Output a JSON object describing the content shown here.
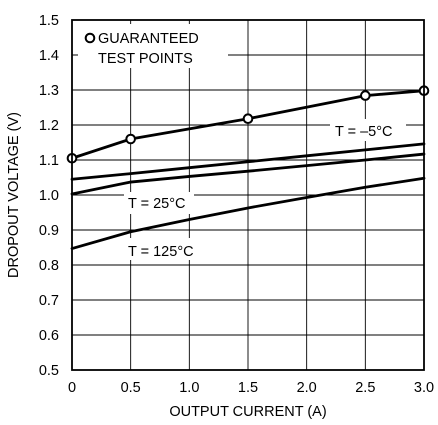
{
  "chart_data": {
    "type": "line",
    "xlabel": "OUTPUT CURRENT (A)",
    "ylabel": "DROPOUT VOLTAGE (V)",
    "xlim": [
      0,
      3.0
    ],
    "ylim": [
      0.5,
      1.5
    ],
    "x_ticks": [
      "0",
      "0.5",
      "1.0",
      "1.5",
      "2.0",
      "2.5",
      "3.0"
    ],
    "y_ticks": [
      "0.5",
      "0.6",
      "0.7",
      "0.8",
      "0.9",
      "1.0",
      "1.1",
      "1.2",
      "1.3",
      "1.4",
      "1.5"
    ],
    "grid": true,
    "legend": {
      "marker": "open-circle",
      "line1": "GUARANTEED",
      "line2": "TEST POINTS",
      "position": "top-left"
    },
    "series": [
      {
        "name": "GUARANTEED TEST POINTS",
        "x": [
          0,
          0.5,
          1.5,
          2.5,
          3.0
        ],
        "values": [
          1.105,
          1.16,
          1.218,
          1.284,
          1.298
        ],
        "markers": true
      },
      {
        "name": "T = −5°C",
        "x": [
          0,
          0.5,
          1.0,
          1.5,
          2.0,
          2.5,
          3.0
        ],
        "values": [
          1.045,
          1.061,
          1.078,
          1.095,
          1.112,
          1.129,
          1.146
        ]
      },
      {
        "name": "T = 25°C",
        "x": [
          0,
          0.5,
          1.0,
          1.5,
          2.0,
          2.5,
          3.0
        ],
        "values": [
          1.003,
          1.037,
          1.053,
          1.068,
          1.084,
          1.1,
          1.117
        ]
      },
      {
        "name": "T = 125°C",
        "x": [
          0,
          0.5,
          1.0,
          1.5,
          2.0,
          2.5,
          3.0
        ],
        "values": [
          0.847,
          0.895,
          0.93,
          0.963,
          0.993,
          1.022,
          1.048
        ]
      }
    ],
    "annotations": [
      {
        "text": "T = –5°C",
        "x": 2.76,
        "y": 1.163
      },
      {
        "text": "T = 25°C",
        "x": 0.48,
        "y": 0.953
      },
      {
        "text": "T = 125°C",
        "x": 0.55,
        "y": 0.818
      }
    ]
  }
}
